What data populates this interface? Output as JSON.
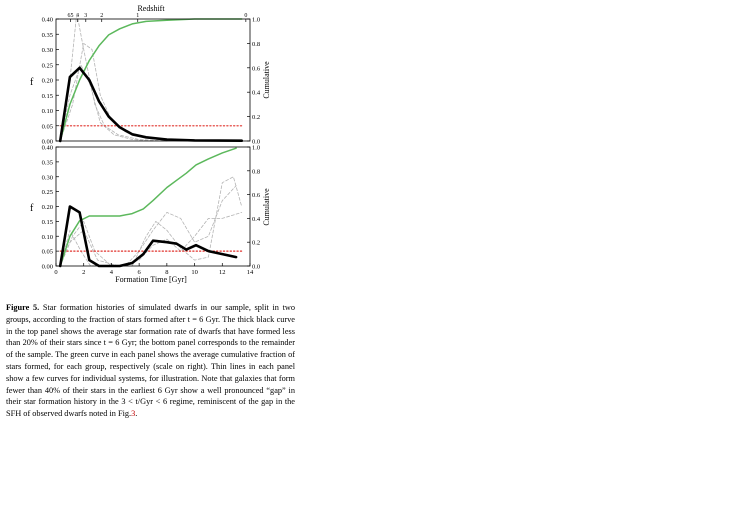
{
  "figure": {
    "top_axis_label": "Redshift",
    "top_axis_ticks": [
      "65",
      "4",
      "3",
      "2",
      "1",
      "0"
    ],
    "top_axis_tick_gyr": [
      1.05,
      1.55,
      2.15,
      3.3,
      5.9,
      13.7
    ],
    "x_label": "Formation Time [Gyr]",
    "left_ylabel": "f",
    "right_ylabel": "Cumulative"
  },
  "chart_data": [
    {
      "type": "line",
      "panel": "top",
      "xlim": [
        0,
        14
      ],
      "ylim": [
        0,
        0.4
      ],
      "ylim_right": [
        0,
        1.0
      ],
      "x_ticks": [],
      "x_tick_labels": [],
      "y_ticks": [
        0.0,
        0.05,
        0.1,
        0.15,
        0.2,
        0.25,
        0.3,
        0.35,
        0.4
      ],
      "y_tick_labels": [
        "0.00",
        "0.05",
        "0.10",
        "0.15",
        "0.20",
        "0.25",
        "0.30",
        "0.35",
        "0.40"
      ],
      "y_right_ticks": [
        0.0,
        0.2,
        0.4,
        0.6,
        0.8,
        1.0
      ],
      "y_right_tick_labels": [
        "0.0",
        "0.2",
        "0.4",
        "0.6",
        "0.8",
        "1.0"
      ],
      "series": [
        {
          "style": "thick-black",
          "x": [
            0.3,
            1.0,
            1.7,
            2.4,
            3.1,
            3.8,
            4.6,
            5.5,
            6.5,
            8.0,
            10.0,
            13.4
          ],
          "y": [
            0.0,
            0.21,
            0.24,
            0.2,
            0.13,
            0.08,
            0.045,
            0.022,
            0.012,
            0.005,
            0.002,
            0.001
          ]
        },
        {
          "style": "green-cumulative",
          "axis": "right",
          "x": [
            0.3,
            1.0,
            1.7,
            2.4,
            3.1,
            3.8,
            4.6,
            5.5,
            6.5,
            8.0,
            10.0,
            13.4
          ],
          "y": [
            0.0,
            0.3,
            0.5,
            0.66,
            0.78,
            0.87,
            0.92,
            0.96,
            0.98,
            0.99,
            1.0,
            1.0
          ]
        },
        {
          "style": "red-dotted",
          "x": [
            0.3,
            13.4
          ],
          "y": [
            0.05,
            0.05
          ]
        },
        {
          "style": "gray-dashed",
          "x": [
            0.3,
            1.0,
            1.5,
            2.0,
            2.8,
            3.5,
            4.5,
            6.0,
            8.0
          ],
          "y": [
            0.0,
            0.2,
            0.42,
            0.3,
            0.12,
            0.05,
            0.02,
            0.005,
            0.0
          ]
        },
        {
          "style": "gray-dashed",
          "x": [
            0.3,
            1.2,
            2.0,
            2.6,
            3.2,
            4.0,
            5.0,
            6.5,
            8.0
          ],
          "y": [
            0.0,
            0.12,
            0.32,
            0.3,
            0.15,
            0.07,
            0.03,
            0.01,
            0.0
          ]
        },
        {
          "style": "gray-dashed",
          "x": [
            0.3,
            1.0,
            1.8,
            2.5,
            3.2,
            4.2,
            5.5,
            7.0
          ],
          "y": [
            0.0,
            0.15,
            0.25,
            0.18,
            0.06,
            0.02,
            0.005,
            0.0
          ]
        }
      ]
    },
    {
      "type": "line",
      "panel": "bottom",
      "xlim": [
        0,
        14
      ],
      "ylim": [
        0,
        0.4
      ],
      "ylim_right": [
        0,
        1.0
      ],
      "x_ticks": [
        0,
        2,
        4,
        6,
        8,
        10,
        12,
        14
      ],
      "x_tick_labels": [
        "0",
        "2",
        "4",
        "6",
        "8",
        "10",
        "12",
        "14"
      ],
      "y_ticks": [
        0.0,
        0.05,
        0.1,
        0.15,
        0.2,
        0.25,
        0.3,
        0.35,
        0.4
      ],
      "y_tick_labels": [
        "0.00",
        "0.05",
        "0.10",
        "0.15",
        "0.20",
        "0.25",
        "0.30",
        "0.35",
        "0.40"
      ],
      "y_right_ticks": [
        0.0,
        0.2,
        0.4,
        0.6,
        0.8,
        1.0
      ],
      "y_right_tick_labels": [
        "0.0",
        "0.2",
        "0.4",
        "0.6",
        "0.8",
        "1.0"
      ],
      "series": [
        {
          "style": "thick-black",
          "x": [
            0.3,
            1.0,
            1.7,
            2.4,
            3.1,
            3.8,
            4.6,
            5.5,
            6.3,
            7.0,
            8.0,
            8.7,
            9.4,
            10.1,
            11.0,
            12.0,
            13.0
          ],
          "y": [
            0.0,
            0.2,
            0.18,
            0.02,
            0.0,
            0.0,
            0.0,
            0.01,
            0.04,
            0.085,
            0.08,
            0.075,
            0.055,
            0.07,
            0.05,
            0.04,
            0.03
          ]
        },
        {
          "style": "green-cumulative",
          "axis": "right",
          "x": [
            0.3,
            1.0,
            1.7,
            2.4,
            3.1,
            3.8,
            4.6,
            5.5,
            6.3,
            7.0,
            8.0,
            8.7,
            9.4,
            10.1,
            11.0,
            12.0,
            13.0
          ],
          "y": [
            0.0,
            0.25,
            0.38,
            0.42,
            0.42,
            0.42,
            0.42,
            0.44,
            0.48,
            0.55,
            0.66,
            0.72,
            0.78,
            0.85,
            0.9,
            0.95,
            0.99
          ]
        },
        {
          "style": "red-dotted",
          "x": [
            0.3,
            13.4
          ],
          "y": [
            0.05,
            0.05
          ]
        },
        {
          "style": "gray-dashed",
          "x": [
            0.3,
            1.0,
            1.8,
            2.5,
            3.2,
            5.0,
            6.0,
            7.0,
            8.0,
            9.0,
            10.0,
            11.0,
            12.0,
            13.0
          ],
          "y": [
            0.0,
            0.12,
            0.05,
            0.0,
            0.0,
            0.0,
            0.05,
            0.12,
            0.18,
            0.16,
            0.08,
            0.1,
            0.22,
            0.27
          ]
        },
        {
          "style": "gray-dashed",
          "x": [
            0.3,
            1.2,
            2.0,
            2.8,
            4.0,
            5.5,
            6.5,
            7.2,
            8.0,
            9.0,
            10.0,
            11.0,
            12.0,
            12.8,
            13.4
          ],
          "y": [
            0.0,
            0.1,
            0.15,
            0.05,
            0.0,
            0.0,
            0.1,
            0.15,
            0.12,
            0.06,
            0.02,
            0.03,
            0.28,
            0.3,
            0.2
          ]
        },
        {
          "style": "gray-dashed",
          "x": [
            0.3,
            1.0,
            2.0,
            3.0,
            4.5,
            6.0,
            7.0,
            8.0,
            9.0,
            10.0,
            11.0,
            12.0,
            13.4
          ],
          "y": [
            0.0,
            0.08,
            0.12,
            0.02,
            0.0,
            0.02,
            0.07,
            0.09,
            0.05,
            0.1,
            0.16,
            0.16,
            0.18
          ]
        }
      ]
    }
  ],
  "caption": {
    "label": "Figure 5.",
    "text_before_ref": "Star formation histories of simulated dwarfs in our sample, split in two groups, according to the fraction of stars formed after t = 6 Gyr. The thick black curve in the top panel shows the average star formation rate of dwarfs that have formed less than 20% of their stars since t = 6 Gyr; the bottom panel corresponds to the remainder of the sample. The green curve in each panel shows the average cumulative fraction of stars formed, for each group, respectively (scale on right). Thin lines in each panel show a few curves for individual systems, for illustration. Note that galaxies that form fewer than 40% of their stars in the earliest 6 Gyr show a well pronounced “gap” in their star formation history in the 3 < t/Gyr < 6 regime, reminiscent of the gap in the SFH of observed dwarfs noted in Fig.",
    "ref": "3",
    "text_after_ref": "."
  }
}
